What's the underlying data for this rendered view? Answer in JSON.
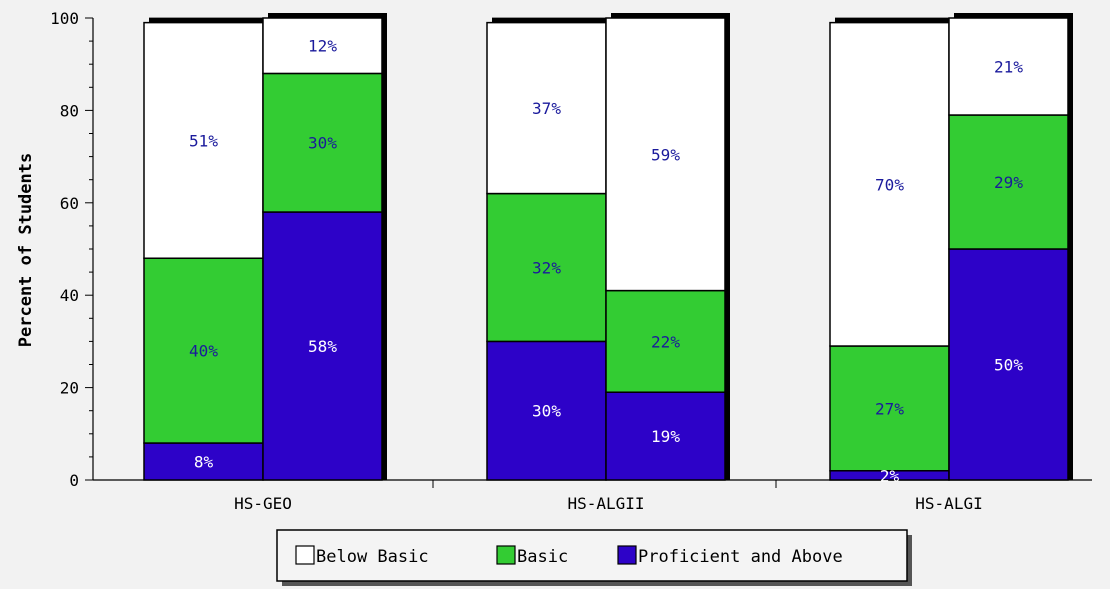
{
  "chart_data": {
    "type": "bar",
    "stacked": true,
    "ylabel": "Percent of Students",
    "xlabel": "",
    "ylim": [
      0,
      100
    ],
    "yticks": [
      0,
      20,
      40,
      60,
      80,
      100
    ],
    "grid": false,
    "legend_position": "bottom-center",
    "categories": [
      "HS-GEO",
      "HS-ALGII",
      "HS-ALGI"
    ],
    "bars_per_category": 2,
    "series": [
      {
        "name": "Proficient and Above",
        "color": "#2d02c8",
        "label_color": "#ffffff",
        "values": [
          [
            8,
            58
          ],
          [
            30,
            19
          ],
          [
            2,
            50
          ]
        ],
        "labels": [
          [
            "8%",
            "58%"
          ],
          [
            "30%",
            "19%"
          ],
          [
            "2%",
            "50%"
          ]
        ]
      },
      {
        "name": "Basic",
        "color": "#33cc33",
        "label_color": "#1a1a9c",
        "values": [
          [
            40,
            30
          ],
          [
            32,
            22
          ],
          [
            27,
            29
          ]
        ],
        "labels": [
          [
            "40%",
            "30%"
          ],
          [
            "32%",
            "22%"
          ],
          [
            "27%",
            "29%"
          ]
        ]
      },
      {
        "name": "Below Basic",
        "color": "#ffffff",
        "label_color": "#1a1a9c",
        "values": [
          [
            51,
            12
          ],
          [
            37,
            59
          ],
          [
            70,
            21
          ]
        ],
        "labels": [
          [
            "51%",
            "12%"
          ],
          [
            "37%",
            "59%"
          ],
          [
            "70%",
            "21%"
          ]
        ]
      }
    ]
  }
}
